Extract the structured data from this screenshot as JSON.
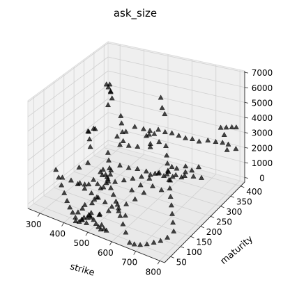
{
  "chart_data": {
    "type": "scatter",
    "projection": "3d",
    "title": "ask_size",
    "xlabel": "strike",
    "ylabel": "maturity",
    "zlabel": "",
    "x_ticks": [
      300,
      400,
      500,
      600,
      700,
      800
    ],
    "y_ticks": [
      50,
      100,
      150,
      200,
      250,
      300,
      350,
      400
    ],
    "z_ticks": [
      0,
      1000,
      2000,
      3000,
      4000,
      5000,
      6000,
      7000
    ],
    "xlim": [
      250,
      820
    ],
    "ylim": [
      20,
      420
    ],
    "zlim": [
      -300,
      7100
    ],
    "grid": true,
    "marker": "triangle-up",
    "marker_color": "#000000",
    "pane_color": "#f2f2f2",
    "series": [
      {
        "points": [
          [
            260,
            400,
            4300
          ],
          [
            272,
            395,
            4200
          ],
          [
            282,
            390,
            4500
          ],
          [
            290,
            385,
            4100
          ],
          [
            300,
            380,
            3700
          ],
          [
            282,
            395,
            3900
          ],
          [
            275,
            390,
            3000
          ],
          [
            520,
            360,
            4900
          ],
          [
            530,
            355,
            4300
          ],
          [
            545,
            350,
            4000
          ],
          [
            560,
            300,
            3600
          ],
          [
            580,
            310,
            3400
          ],
          [
            600,
            320,
            3300
          ],
          [
            620,
            330,
            3100
          ],
          [
            640,
            340,
            2900
          ],
          [
            660,
            350,
            2800
          ],
          [
            680,
            360,
            2600
          ],
          [
            700,
            380,
            2500
          ],
          [
            720,
            395,
            2300
          ],
          [
            740,
            405,
            2200
          ],
          [
            760,
            410,
            2100
          ],
          [
            770,
            360,
            3900
          ],
          [
            785,
            370,
            3850
          ],
          [
            800,
            380,
            3800
          ],
          [
            810,
            390,
            3700
          ],
          [
            760,
            390,
            3000
          ],
          [
            780,
            380,
            2200
          ],
          [
            800,
            400,
            2100
          ],
          [
            700,
            300,
            1500
          ],
          [
            720,
            310,
            1700
          ],
          [
            740,
            300,
            1200
          ],
          [
            690,
            280,
            1600
          ],
          [
            650,
            260,
            2000
          ],
          [
            660,
            240,
            1400
          ],
          [
            640,
            220,
            900
          ],
          [
            620,
            200,
            1300
          ],
          [
            600,
            180,
            1000
          ],
          [
            580,
            160,
            700
          ],
          [
            560,
            140,
            500
          ],
          [
            540,
            120,
            600
          ],
          [
            520,
            100,
            300
          ],
          [
            500,
            80,
            200
          ],
          [
            480,
            60,
            100
          ],
          [
            460,
            40,
            50
          ],
          [
            440,
            30,
            200
          ],
          [
            420,
            40,
            300
          ],
          [
            400,
            50,
            400
          ],
          [
            380,
            60,
            600
          ],
          [
            360,
            70,
            900
          ],
          [
            340,
            80,
            1200
          ],
          [
            320,
            90,
            1500
          ],
          [
            300,
            100,
            1800
          ],
          [
            310,
            120,
            1100
          ],
          [
            330,
            140,
            800
          ],
          [
            350,
            160,
            500
          ],
          [
            370,
            180,
            300
          ],
          [
            390,
            200,
            200
          ],
          [
            410,
            220,
            150
          ],
          [
            430,
            240,
            100
          ],
          [
            450,
            260,
            80
          ],
          [
            470,
            280,
            60
          ],
          [
            490,
            300,
            50
          ],
          [
            510,
            320,
            40
          ],
          [
            530,
            340,
            30
          ],
          [
            550,
            360,
            20
          ],
          [
            570,
            380,
            10
          ],
          [
            590,
            400,
            5
          ],
          [
            450,
            30,
            2500
          ],
          [
            470,
            40,
            2200
          ],
          [
            490,
            50,
            1900
          ],
          [
            510,
            60,
            1600
          ],
          [
            530,
            70,
            1300
          ],
          [
            550,
            80,
            1000
          ],
          [
            570,
            90,
            700
          ],
          [
            590,
            100,
            400
          ],
          [
            460,
            25,
            100
          ],
          [
            470,
            25,
            300
          ],
          [
            480,
            25,
            500
          ],
          [
            490,
            25,
            200
          ],
          [
            500,
            25,
            800
          ],
          [
            510,
            25,
            1000
          ],
          [
            520,
            25,
            600
          ],
          [
            530,
            25,
            400
          ],
          [
            540,
            25,
            250
          ],
          [
            550,
            25,
            150
          ],
          [
            445,
            25,
            50
          ],
          [
            455,
            25,
            700
          ],
          [
            465,
            35,
            900
          ],
          [
            475,
            35,
            1200
          ],
          [
            485,
            35,
            400
          ],
          [
            495,
            35,
            600
          ],
          [
            505,
            35,
            1500
          ],
          [
            515,
            35,
            1800
          ],
          [
            525,
            35,
            2000
          ],
          [
            535,
            35,
            900
          ],
          [
            545,
            35,
            300
          ],
          [
            555,
            35,
            100
          ],
          [
            565,
            35,
            50
          ],
          [
            420,
            100,
            1500
          ],
          [
            440,
            120,
            1700
          ],
          [
            460,
            140,
            1900
          ],
          [
            480,
            160,
            2100
          ],
          [
            500,
            180,
            2300
          ],
          [
            520,
            200,
            2000
          ],
          [
            540,
            220,
            1800
          ],
          [
            560,
            240,
            1500
          ],
          [
            580,
            260,
            1200
          ],
          [
            600,
            280,
            900
          ],
          [
            620,
            300,
            700
          ],
          [
            640,
            320,
            500
          ],
          [
            380,
            120,
            2200
          ],
          [
            400,
            140,
            2400
          ],
          [
            360,
            200,
            2600
          ],
          [
            340,
            220,
            2800
          ],
          [
            320,
            240,
            3000
          ],
          [
            300,
            260,
            2700
          ],
          [
            290,
            300,
            2400
          ],
          [
            280,
            320,
            2100
          ],
          [
            430,
            250,
            3100
          ],
          [
            450,
            270,
            3300
          ],
          [
            470,
            290,
            3500
          ],
          [
            490,
            310,
            3200
          ],
          [
            500,
            330,
            2900
          ],
          [
            510,
            340,
            2600
          ],
          [
            480,
            350,
            2300
          ],
          [
            460,
            360,
            2000
          ],
          [
            560,
            260,
            2900
          ],
          [
            580,
            280,
            3100
          ],
          [
            600,
            290,
            2800
          ],
          [
            620,
            270,
            2500
          ],
          [
            640,
            250,
            2300
          ],
          [
            660,
            230,
            2100
          ],
          [
            680,
            210,
            1900
          ],
          [
            700,
            190,
            1700
          ],
          [
            720,
            170,
            1500
          ],
          [
            740,
            150,
            1300
          ],
          [
            760,
            130,
            1100
          ],
          [
            780,
            110,
            900
          ],
          [
            800,
            90,
            700
          ],
          [
            790,
            70,
            500
          ],
          [
            770,
            60,
            300
          ],
          [
            750,
            50,
            200
          ],
          [
            730,
            40,
            100
          ],
          [
            710,
            30,
            60
          ],
          [
            690,
            25,
            40
          ],
          [
            670,
            25,
            20
          ],
          [
            650,
            30,
            500
          ],
          [
            630,
            40,
            800
          ],
          [
            610,
            50,
            1100
          ],
          [
            595,
            60,
            1400
          ],
          [
            580,
            65,
            1700
          ],
          [
            565,
            70,
            2000
          ],
          [
            550,
            75,
            2300
          ],
          [
            535,
            80,
            2600
          ],
          [
            520,
            85,
            2900
          ],
          [
            505,
            90,
            3100
          ],
          [
            490,
            95,
            2800
          ],
          [
            400,
            300,
            1800
          ],
          [
            420,
            320,
            1600
          ],
          [
            440,
            340,
            1400
          ],
          [
            460,
            380,
            1200
          ],
          [
            380,
            340,
            1500
          ],
          [
            360,
            360,
            1800
          ],
          [
            340,
            380,
            2100
          ],
          [
            320,
            400,
            2300
          ],
          [
            350,
            300,
            1000
          ],
          [
            370,
            280,
            800
          ],
          [
            390,
            260,
            600
          ],
          [
            410,
            240,
            500
          ],
          [
            430,
            200,
            900
          ],
          [
            450,
            180,
            1100
          ],
          [
            470,
            120,
            1300
          ],
          [
            490,
            110,
            1600
          ],
          [
            600,
            120,
            1900
          ],
          [
            620,
            140,
            2100
          ],
          [
            640,
            160,
            2400
          ],
          [
            660,
            180,
            2600
          ],
          [
            680,
            200,
            2400
          ],
          [
            700,
            220,
            2200
          ],
          [
            720,
            240,
            2000
          ],
          [
            740,
            260,
            1800
          ]
        ]
      }
    ]
  }
}
